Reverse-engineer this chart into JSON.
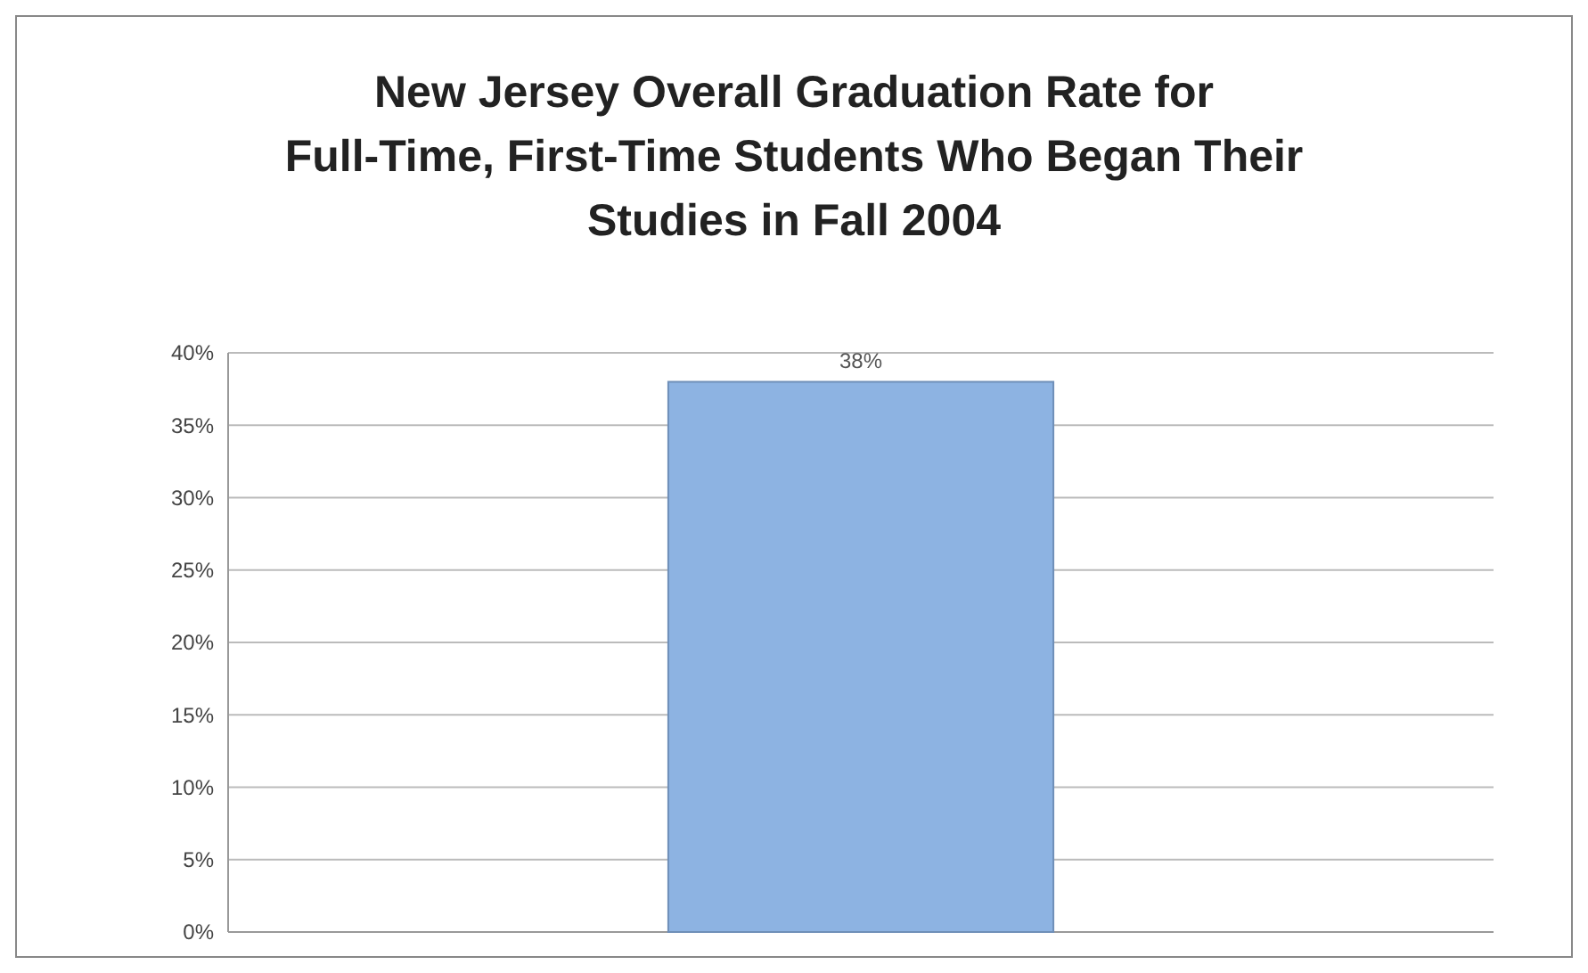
{
  "chart_data": {
    "type": "bar",
    "title": "New Jersey Overall Graduation Rate for Full-Time, First-Time Students Who Began Their Studies in Fall 2004",
    "categories": [
      null
    ],
    "values": [
      38
    ],
    "color": "#8db3e2",
    "value_labels": [
      "38%"
    ],
    "ylim": [
      0,
      40
    ],
    "yticks": [
      {
        "value": 0,
        "label": "0%"
      },
      {
        "value": 5,
        "label": "5%"
      },
      {
        "value": 10,
        "label": "10%"
      },
      {
        "value": 15,
        "label": "15%"
      },
      {
        "value": 20,
        "label": "20%"
      },
      {
        "value": 25,
        "label": "25%"
      },
      {
        "value": 30,
        "label": "30%"
      },
      {
        "value": 35,
        "label": "35%"
      },
      {
        "value": 40,
        "label": "40%"
      }
    ],
    "grid": true
  }
}
